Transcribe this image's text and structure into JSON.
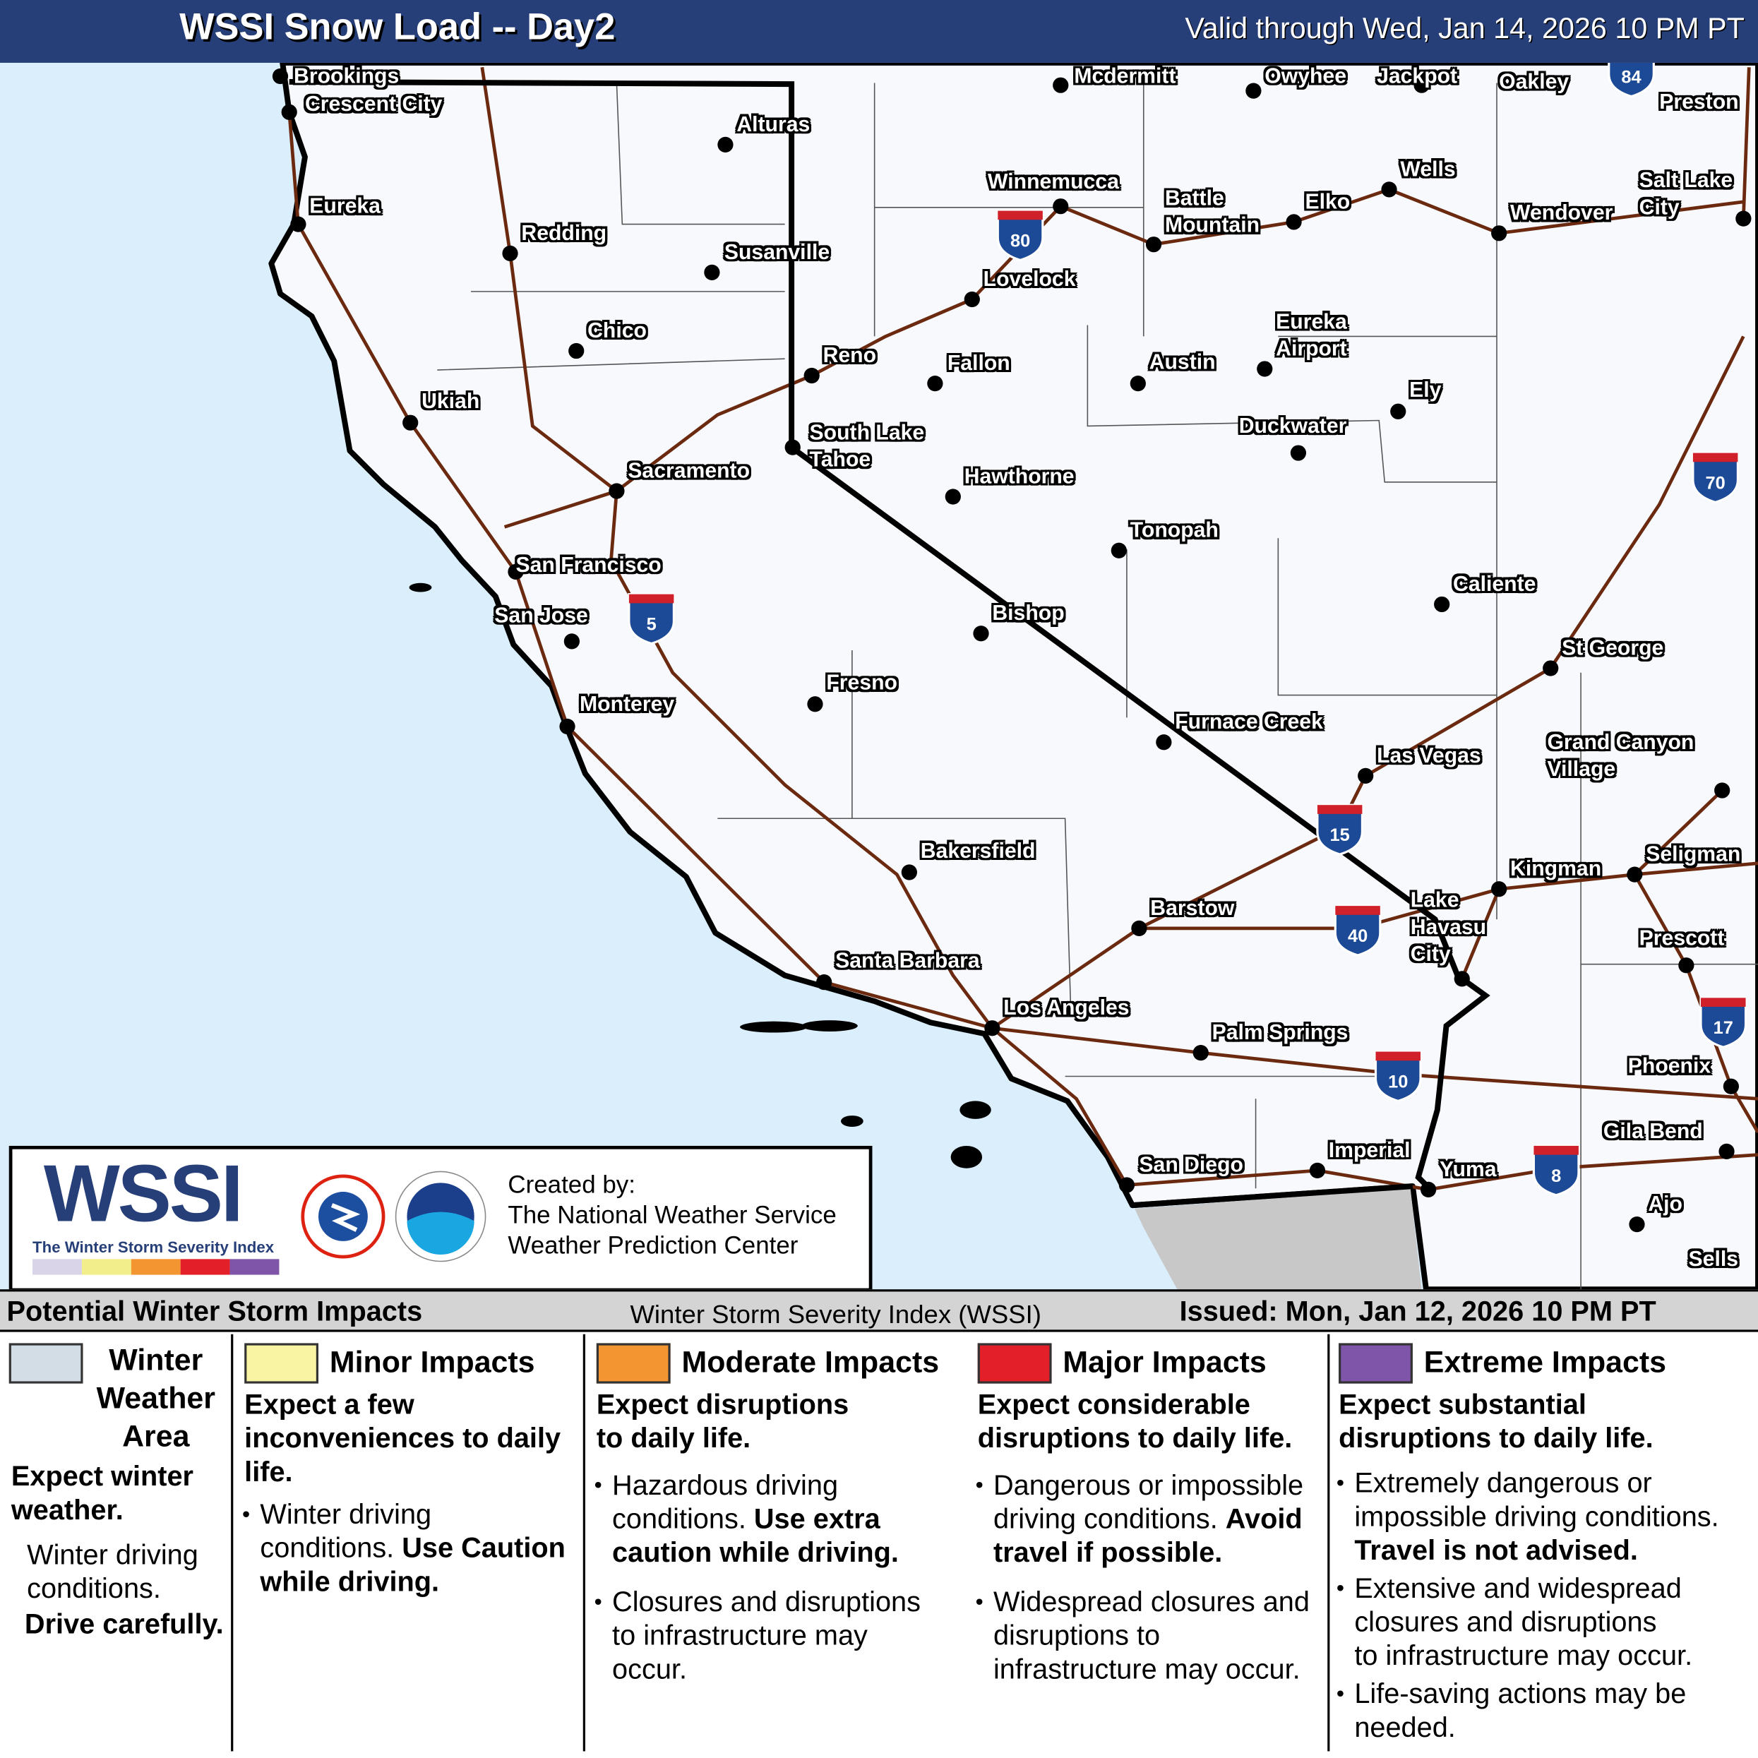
{
  "header": {
    "title": "WSSI Snow Load -- Day2",
    "valid": "Valid through Wed, Jan 14, 2026 10 PM PT"
  },
  "colors": {
    "ocean": "#dbeefc",
    "land": "#f7f9fc",
    "mexico": "#c8c8c8",
    "highway": "#6b2a10",
    "header": "#273f78",
    "winter": "#d3dde6",
    "minor": "#f8f4a4",
    "moderate": "#f39530",
    "major": "#e3202a",
    "extreme": "#7e55a8"
  },
  "cities": [
    "Brookings",
    "Crescent City",
    "Eureka",
    "Redding",
    "Alturas",
    "Susanville",
    "Chico",
    "Ukiah",
    "Reno",
    "Sacramento",
    "South Lake\nTahoe",
    "San Francisco",
    "San Jose",
    "Monterey",
    "Fresno",
    "Bishop",
    "Hawthorne",
    "Fallon",
    "Lovelock",
    "Winnemucca",
    "Battle\nMountain",
    "Elko",
    "Wells",
    "Wendover",
    "Salt Lake\nCity",
    "Oakley",
    "Preston",
    "Mcdermitt",
    "Owyhee",
    "Jackpot",
    "Austin",
    "Eureka\nAirport",
    "Ely",
    "Duckwater",
    "Tonopah",
    "Caliente",
    "St George",
    "Furnace Creek",
    "Las Vegas",
    "Grand Canyon\nVillage",
    "Kingman",
    "Seligman",
    "Lake\nHavasu\nCity",
    "Prescott",
    "Phoenix",
    "Gila Bend",
    "Ajo",
    "Sells",
    "Yuma",
    "Imperial",
    "San Diego",
    "Palm Springs",
    "Los Angeles",
    "Santa Barbara",
    "Bakersfield",
    "Barstow"
  ],
  "interstates": [
    "80",
    "5",
    "15",
    "40",
    "10",
    "8",
    "17",
    "70",
    "84"
  ],
  "logo": {
    "wordmark": "WSSI",
    "tagline": "The Winter Storm Severity Index",
    "nws_seal": "NATIONAL WEATHER SERVICE",
    "noaa_seal": "NOAA",
    "created_by": "Created by:",
    "org1": "The National Weather Service",
    "org2": "Weather Prediction Center"
  },
  "legend": {
    "title": "Potential Winter Storm Impacts",
    "center": "Winter Storm Severity Index (WSSI)",
    "issued": "Issued: Mon, Jan 12, 2026 10 PM PT",
    "categories": [
      {
        "name": "Winter\nWeather\nArea",
        "headline": "Expect winter\nweather.",
        "text": "Winter driving\nconditions.",
        "bold": "Drive carefully."
      },
      {
        "name": "Minor Impacts",
        "headline": "Expect a few\ninconveniences to daily\nlife.",
        "b1": "Winter driving\nconditions. ",
        "b1bold": "Use Caution\nwhile driving."
      },
      {
        "name": "Moderate Impacts",
        "headline": "Expect disruptions\nto daily life.",
        "b1": "Hazardous driving\nconditions. ",
        "b1bold": "Use extra\ncaution while driving.",
        "b2": "Closures and disruptions\nto infrastructure may\noccur."
      },
      {
        "name": "Major Impacts",
        "headline": "Expect considerable\ndisruptions to daily life.",
        "b1": "Dangerous or impossible\ndriving conditions. ",
        "b1bold": "Avoid\ntravel if possible.",
        "b2": "Widespread closures and\ndisruptions to\ninfrastructure may occur."
      },
      {
        "name": "Extreme Impacts",
        "headline": "Expect substantial\ndisruptions to daily life.",
        "b1": "Extremely dangerous or\nimpossible driving conditions.\n",
        "b1bold": "Travel is not advised.",
        "b2": "Extensive and widespread\nclosures and disruptions\nto infrastructure may occur.",
        "b3": "Life-saving actions may be\nneeded."
      }
    ]
  }
}
